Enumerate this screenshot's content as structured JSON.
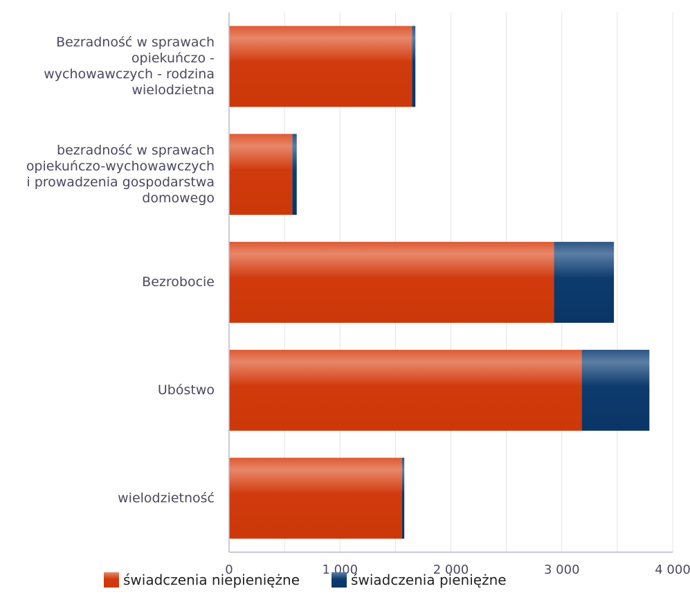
{
  "chart_data": {
    "type": "bar",
    "orientation": "horizontal",
    "stacked": true,
    "categories": [
      "Bezradność w sprawach\nopiekuńczo -\nwychowawczych - rodzina\nwielodzietna",
      "bezradność w sprawach\nopiekuńczo-wychowawczych\ni prowadzenia gospodarstwa\ndomowego",
      "Bezrobocie",
      "Ubóstwo",
      "wielodzietność"
    ],
    "series": [
      {
        "name": "świadczenia niepieniężne",
        "values": [
          1650,
          570,
          2930,
          3180,
          1560
        ],
        "color": "#d13a0c"
      },
      {
        "name": "świadczenia pieniężne",
        "values": [
          30,
          40,
          540,
          610,
          20
        ],
        "color": "#0d3b6e"
      }
    ],
    "xlim": [
      0,
      4000
    ],
    "xticks": [
      0,
      1000,
      2000,
      3000,
      4000
    ],
    "xtick_labels": [
      "0",
      "1 000",
      "2 000",
      "3 000",
      "4 000"
    ],
    "grid": true,
    "legend_position": "bottom"
  }
}
